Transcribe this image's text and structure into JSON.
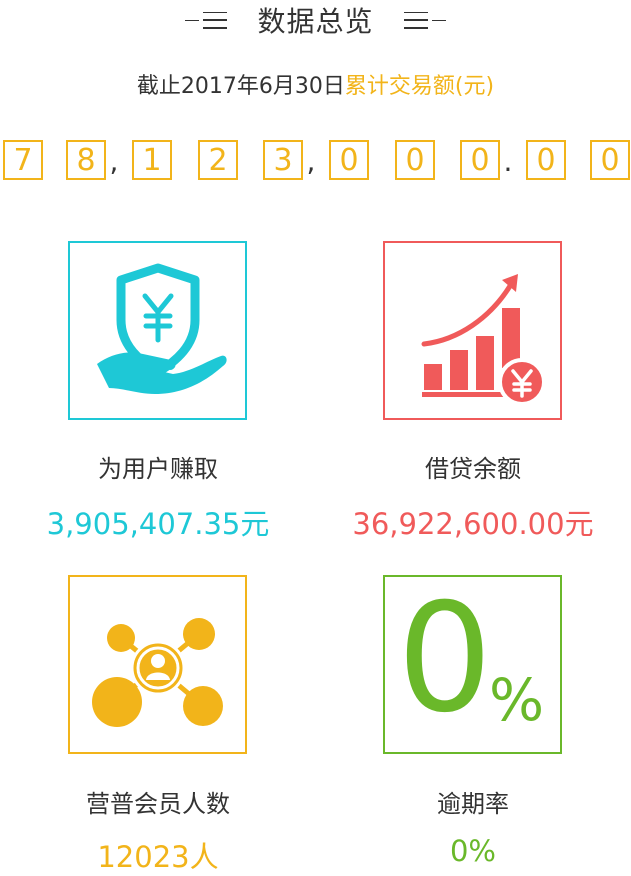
{
  "header": {
    "title": "数据总览"
  },
  "summary": {
    "prefix": "截止2017年6月30日",
    "highlight": "累计交易额(元)"
  },
  "total": {
    "digits": [
      "7",
      "8",
      "1",
      "2",
      "3",
      "0",
      "0",
      "0",
      "0",
      "0"
    ],
    "separators": [
      ",",
      ",",
      "."
    ]
  },
  "stats": {
    "earned": {
      "label": "为用户赚取",
      "value": "3,905,407.35元",
      "icon": "hand-shield-yen-icon",
      "color": "#1ec8d6"
    },
    "loans": {
      "label": "借贷余额",
      "value": "36,922,600.00元",
      "icon": "growth-chart-yen-icon",
      "color": "#f05a5a"
    },
    "members": {
      "label": "营普会员人数",
      "value": "12023人",
      "icon": "network-user-icon",
      "color": "#f2b41a"
    },
    "overdue": {
      "label": "逾期率",
      "value": "0%",
      "big_number": "0",
      "big_unit": "%",
      "color": "#6ab82a"
    }
  }
}
